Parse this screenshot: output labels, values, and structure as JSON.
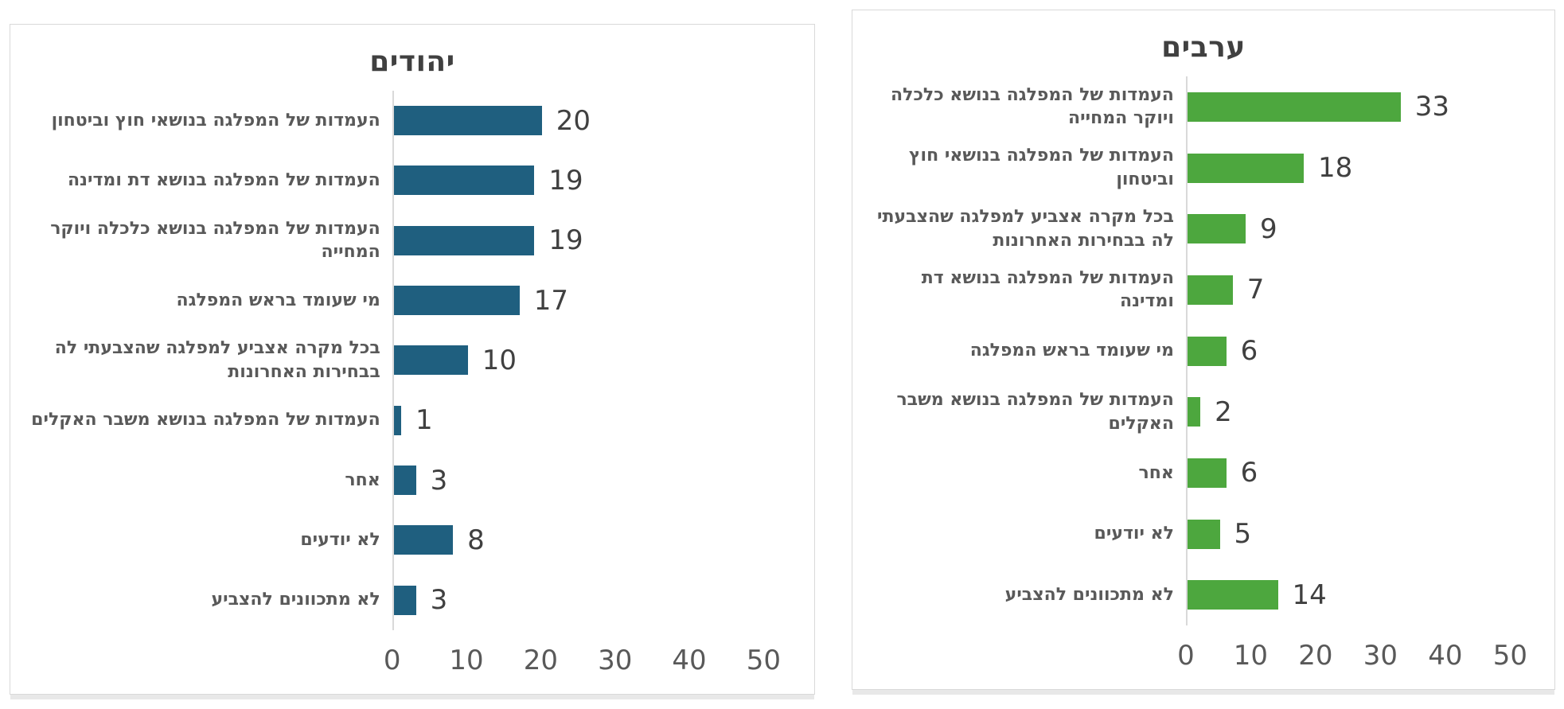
{
  "chart_data": [
    {
      "type": "bar",
      "orientation": "horizontal",
      "title": "יהודים",
      "bar_color": "#1F5F7F",
      "categories": [
        "העמדות של המפלגה בנושאי חוץ וביטחון",
        "העמדות של המפלגה בנושא דת ומדינה",
        "העמדות של המפלגה בנושא כלכלה ויוקר המחייה",
        "מי שעומד בראש המפלגה",
        "בכל מקרה אצביע למפלגה שהצבעתי לה בבחירות האחרונות",
        "העמדות של המפלגה בנושא משבר האקלים",
        "אחר",
        "לא יודעים",
        "לא מתכוונים להצביע"
      ],
      "values": [
        20,
        19,
        19,
        17,
        10,
        1,
        3,
        8,
        3
      ],
      "value_labels": [
        "20",
        "19",
        "19",
        "17",
        "10",
        "1",
        "3",
        "8",
        "3"
      ],
      "x_ticks": [
        "0",
        "10",
        "20",
        "30",
        "40",
        "50"
      ],
      "xlim": [
        0,
        50
      ],
      "grid": false,
      "legend": "none"
    },
    {
      "type": "bar",
      "orientation": "horizontal",
      "title": "ערבים",
      "bar_color": "#4DA73E",
      "categories": [
        "העמדות של המפלגה בנושא כלכלה ויוקר המחייה",
        "העמדות של המפלגה בנושאי חוץ וביטחון",
        "בכל מקרה אצביע למפלגה שהצבעתי לה בבחירות האחרונות",
        "העמדות של המפלגה בנושא דת ומדינה",
        "מי שעומד בראש המפלגה",
        "העמדות של המפלגה בנושא משבר האקלים",
        "אחר",
        "לא יודעים",
        "לא מתכוונים להצביע"
      ],
      "values": [
        33,
        18,
        9,
        7,
        6,
        2,
        6,
        5,
        14
      ],
      "value_labels": [
        "33",
        "18",
        "9",
        "7",
        "6",
        "2",
        "6",
        "5",
        "14"
      ],
      "x_ticks": [
        "0",
        "10",
        "20",
        "30",
        "40",
        "50"
      ],
      "xlim": [
        0,
        50
      ],
      "grid": false,
      "legend": "none"
    }
  ],
  "colors": {
    "panel_border": "#d9d9d9",
    "axis_line": "#d9d9d9",
    "title_text": "#404040",
    "category_text": "#595959",
    "value_text": "#404040",
    "tick_text": "#595959",
    "jews_bar": "#1F5F7F",
    "arabs_bar": "#4DA73E"
  }
}
